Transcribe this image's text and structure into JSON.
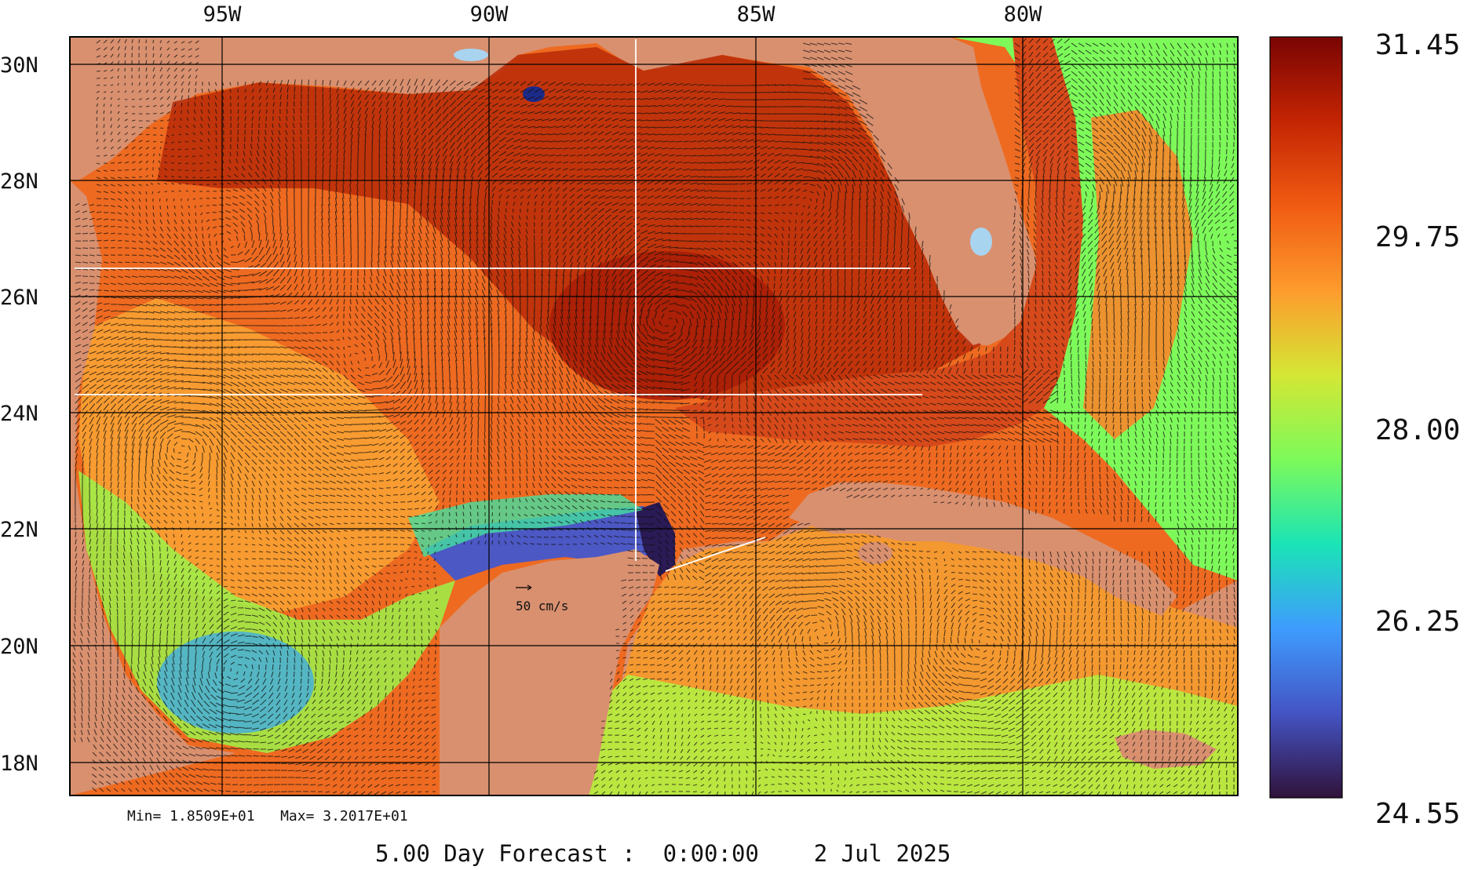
{
  "map": {
    "lon_labels": [
      "95W",
      "90W",
      "85W",
      "80W"
    ],
    "lat_labels": [
      "30N",
      "28N",
      "26N",
      "24N",
      "22N",
      "20N",
      "18N"
    ],
    "scale_label": "50 cm/s",
    "stats": "Min= 1.8509E+01   Max= 3.2017E+01",
    "title": "5.00 Day Forecast :  0:00:00    2 Jul 2025",
    "land_color": "#D9906F",
    "lake_color": "#A8D4F0"
  },
  "colorbar": {
    "ticks": [
      "31.45",
      "29.75",
      "28.00",
      "26.25",
      "24.55"
    ],
    "colors": [
      "#7a0403",
      "#c42503",
      "#f05b12",
      "#fe9b2d",
      "#d4e735",
      "#7dfa5a",
      "#1ae4b6",
      "#3e9cfe",
      "#4454c4",
      "#30123b"
    ]
  }
}
